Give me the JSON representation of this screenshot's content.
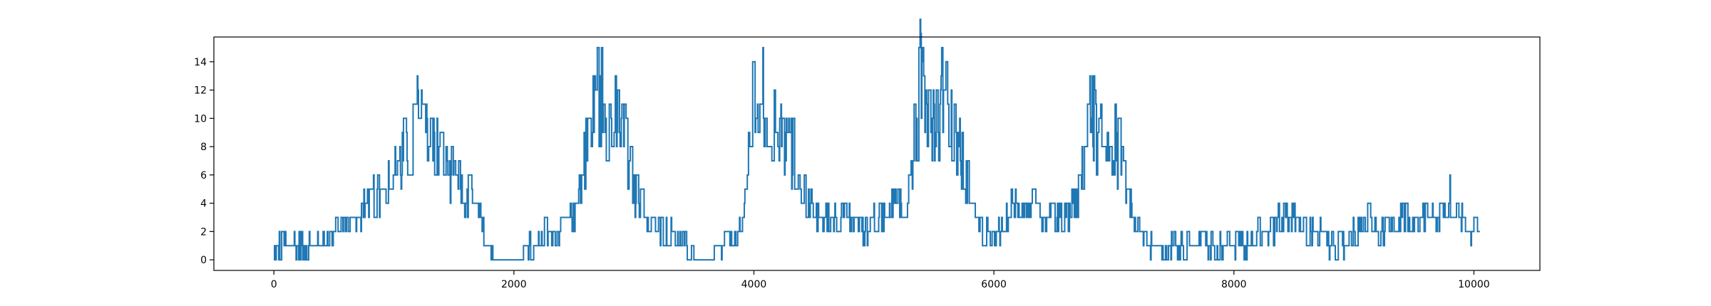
{
  "chart_data": {
    "type": "line",
    "title": "",
    "xlabel": "",
    "ylabel": "",
    "xlim": [
      -500,
      10550
    ],
    "ylim": [
      -0.75,
      15.75
    ],
    "x_ticks": [
      0,
      2000,
      4000,
      6000,
      8000,
      10000
    ],
    "y_ticks": [
      0,
      2,
      4,
      6,
      8,
      10,
      12,
      14
    ],
    "grid": false,
    "legend": "none",
    "line_color": "#1f77b4",
    "x_range": [
      0,
      10050
    ],
    "envelope": [
      [
        0,
        1
      ],
      [
        300,
        1
      ],
      [
        500,
        2
      ],
      [
        700,
        3
      ],
      [
        900,
        5
      ],
      [
        1050,
        7
      ],
      [
        1150,
        9
      ],
      [
        1250,
        11
      ],
      [
        1350,
        8
      ],
      [
        1450,
        6
      ],
      [
        1550,
        5
      ],
      [
        1650,
        4
      ],
      [
        1750,
        2
      ],
      [
        1850,
        0
      ],
      [
        1950,
        1
      ],
      [
        2050,
        0
      ],
      [
        2150,
        1
      ],
      [
        2250,
        2
      ],
      [
        2350,
        2
      ],
      [
        2500,
        3
      ],
      [
        2600,
        8
      ],
      [
        2700,
        12
      ],
      [
        2800,
        10
      ],
      [
        2900,
        9
      ],
      [
        3000,
        5
      ],
      [
        3100,
        3
      ],
      [
        3200,
        2
      ],
      [
        3300,
        2
      ],
      [
        3400,
        1
      ],
      [
        3500,
        1
      ],
      [
        3600,
        0
      ],
      [
        3750,
        1
      ],
      [
        3900,
        2
      ],
      [
        4000,
        12
      ],
      [
        4100,
        11
      ],
      [
        4200,
        9
      ],
      [
        4300,
        8
      ],
      [
        4400,
        5
      ],
      [
        4500,
        3
      ],
      [
        4600,
        3
      ],
      [
        4700,
        3
      ],
      [
        4800,
        3
      ],
      [
        4900,
        2
      ],
      [
        5000,
        3
      ],
      [
        5150,
        4
      ],
      [
        5300,
        5
      ],
      [
        5400,
        14
      ],
      [
        5500,
        10
      ],
      [
        5600,
        12
      ],
      [
        5700,
        8
      ],
      [
        5800,
        5
      ],
      [
        5900,
        2
      ],
      [
        6000,
        1
      ],
      [
        6100,
        3
      ],
      [
        6200,
        4
      ],
      [
        6300,
        4
      ],
      [
        6400,
        3
      ],
      [
        6500,
        3
      ],
      [
        6600,
        3
      ],
      [
        6700,
        4
      ],
      [
        6800,
        10
      ],
      [
        6900,
        9
      ],
      [
        7000,
        9
      ],
      [
        7100,
        5
      ],
      [
        7200,
        2
      ],
      [
        7300,
        1
      ],
      [
        7400,
        1
      ],
      [
        7500,
        1
      ],
      [
        7600,
        1
      ],
      [
        7700,
        1
      ],
      [
        7800,
        1
      ],
      [
        7900,
        1
      ],
      [
        8000,
        1
      ],
      [
        8100,
        1
      ],
      [
        8200,
        2
      ],
      [
        8300,
        2
      ],
      [
        8400,
        3
      ],
      [
        8500,
        3
      ],
      [
        8600,
        2
      ],
      [
        8700,
        2
      ],
      [
        8800,
        1
      ],
      [
        8900,
        1
      ],
      [
        9000,
        2
      ],
      [
        9100,
        3
      ],
      [
        9200,
        2
      ],
      [
        9300,
        2
      ],
      [
        9400,
        3
      ],
      [
        9500,
        3
      ],
      [
        9600,
        3
      ],
      [
        9700,
        3
      ],
      [
        9800,
        4
      ],
      [
        9900,
        3
      ],
      [
        10000,
        2
      ],
      [
        10050,
        2
      ]
    ],
    "peak_points": [
      [
        1230,
        12
      ],
      [
        2660,
        13
      ],
      [
        3990,
        14
      ],
      [
        5400,
        15
      ],
      [
        6820,
        13
      ],
      [
        9800,
        6
      ]
    ],
    "flat_segments": [
      [
        1900,
        2050,
        0
      ],
      [
        3500,
        3600,
        0
      ]
    ]
  }
}
